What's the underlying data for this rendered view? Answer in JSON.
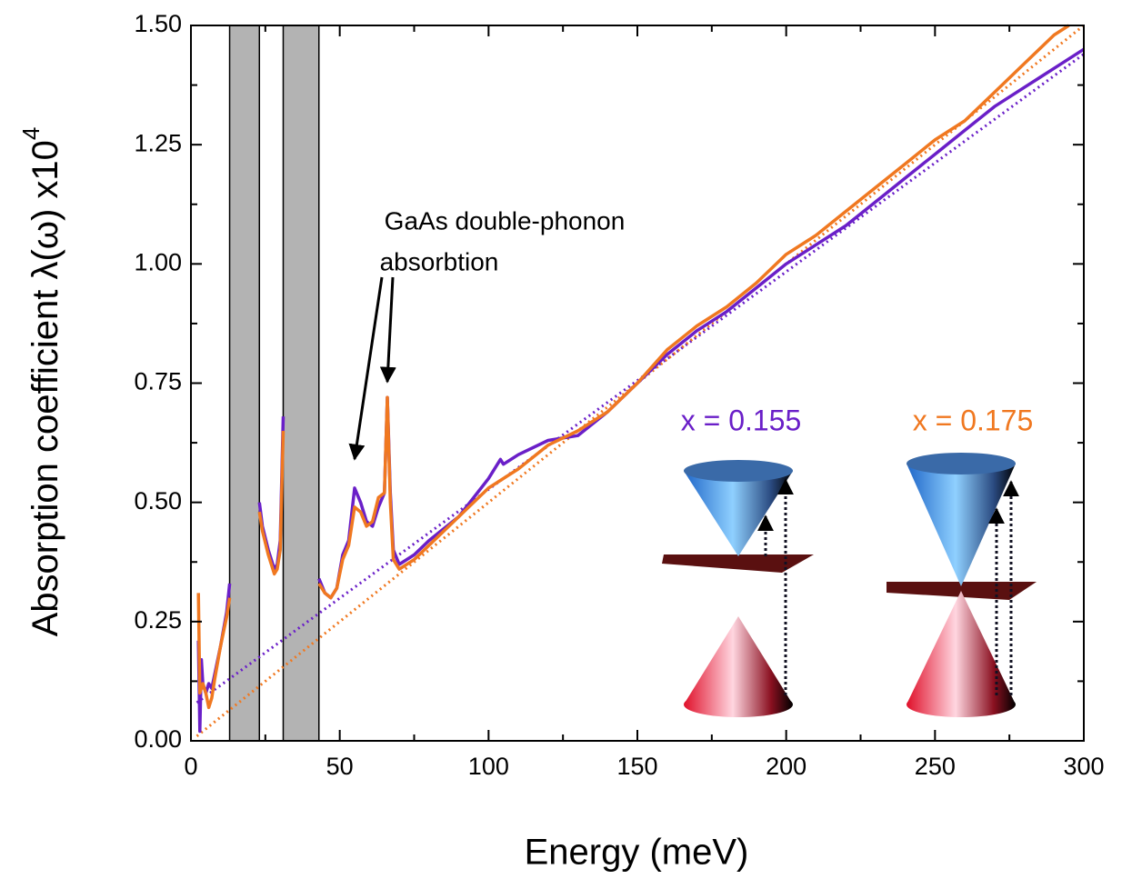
{
  "chart_data": {
    "type": "line",
    "xlabel": "Energy (meV)",
    "ylabel": "Absorption coefficient λ(ω) x10",
    "ylabel_superscript": "4",
    "annotation": [
      "GaAs double-phonon",
      "absorbtion"
    ],
    "xlim": [
      0,
      300
    ],
    "ylim": [
      0,
      1.5
    ],
    "xticks": [
      0,
      50,
      100,
      150,
      200,
      250,
      300
    ],
    "xminorticks": [
      25,
      75,
      125,
      175,
      225,
      275
    ],
    "yticks": [
      {
        "value": 0,
        "label": "0.00"
      },
      {
        "value": 0.25,
        "label": "0.25"
      },
      {
        "value": 0.5,
        "label": "0.50"
      },
      {
        "value": 0.75,
        "label": "0.75"
      },
      {
        "value": 1,
        "label": "1.00"
      },
      {
        "value": 1.25,
        "label": "1.25"
      },
      {
        "value": 1.5,
        "label": "1.50"
      }
    ],
    "yminorticks": [
      0.125,
      0.375,
      0.625,
      0.875,
      1.125,
      1.375
    ],
    "bands": [
      [
        13,
        23
      ],
      [
        31,
        43
      ]
    ],
    "band_color": "#b3b3b3",
    "series": [
      {
        "name": "x = 0.155",
        "color": "#6a1fc8",
        "x": [
          2.5,
          3,
          3.5,
          4,
          5,
          6,
          7,
          8,
          10,
          12,
          13,
          18,
          23,
          24,
          26,
          28,
          29,
          30,
          31,
          37,
          43,
          45,
          47,
          49,
          51,
          53,
          55,
          57,
          59,
          61,
          63,
          65,
          66,
          67,
          68,
          70,
          75,
          80,
          90,
          100,
          104,
          105,
          110,
          120,
          130,
          140,
          150,
          160,
          170,
          180,
          190,
          200,
          210,
          220,
          230,
          240,
          250,
          260,
          270,
          280,
          290,
          300
        ],
        "values": [
          0.21,
          0.02,
          0.17,
          0.12,
          0.1,
          0.12,
          0.11,
          0.14,
          0.2,
          0.27,
          0.33,
          null,
          0.5,
          0.45,
          0.4,
          0.36,
          0.37,
          0.42,
          0.68,
          null,
          0.34,
          0.31,
          0.3,
          0.32,
          0.39,
          0.42,
          0.53,
          0.5,
          0.46,
          0.45,
          0.49,
          0.52,
          0.72,
          0.52,
          0.4,
          0.37,
          0.39,
          0.42,
          0.47,
          0.55,
          0.59,
          0.58,
          0.6,
          0.63,
          0.64,
          0.69,
          0.75,
          0.81,
          0.86,
          0.9,
          0.95,
          1.0,
          1.04,
          1.08,
          1.13,
          1.18,
          1.23,
          1.28,
          1.33,
          1.37,
          1.41,
          1.45
        ]
      },
      {
        "name": "x = 0.175",
        "color": "#f07820",
        "x": [
          2.5,
          3,
          4,
          5,
          6,
          7,
          8,
          10,
          12,
          13,
          18,
          23,
          24,
          26,
          28,
          29,
          30,
          31,
          37,
          43,
          45,
          47,
          49,
          51,
          53,
          55,
          57,
          59,
          61,
          63,
          65,
          66,
          67,
          68,
          70,
          75,
          80,
          90,
          100,
          105,
          110,
          120,
          130,
          140,
          150,
          160,
          170,
          180,
          190,
          200,
          210,
          220,
          230,
          240,
          250,
          260,
          270,
          280,
          290,
          295
        ],
        "values": [
          0.31,
          0.1,
          0.12,
          0.1,
          0.07,
          0.09,
          0.13,
          0.2,
          0.26,
          0.3,
          null,
          0.48,
          0.44,
          0.39,
          0.35,
          0.36,
          0.4,
          0.65,
          null,
          0.33,
          0.31,
          0.3,
          0.32,
          0.38,
          0.41,
          0.49,
          0.48,
          0.45,
          0.46,
          0.51,
          0.52,
          0.72,
          0.5,
          0.38,
          0.36,
          0.38,
          0.41,
          0.47,
          0.53,
          0.55,
          0.57,
          0.62,
          0.65,
          0.69,
          0.75,
          0.82,
          0.87,
          0.91,
          0.96,
          1.02,
          1.06,
          1.11,
          1.16,
          1.21,
          1.26,
          1.3,
          1.36,
          1.42,
          1.48,
          1.5
        ]
      }
    ],
    "fits": [
      {
        "color": "#6a1fc8",
        "x": [
          2,
          300
        ],
        "values": [
          0.08,
          1.44
        ]
      },
      {
        "color": "#f07820",
        "x": [
          2,
          300
        ],
        "values": [
          0.01,
          1.5
        ]
      }
    ]
  }
}
